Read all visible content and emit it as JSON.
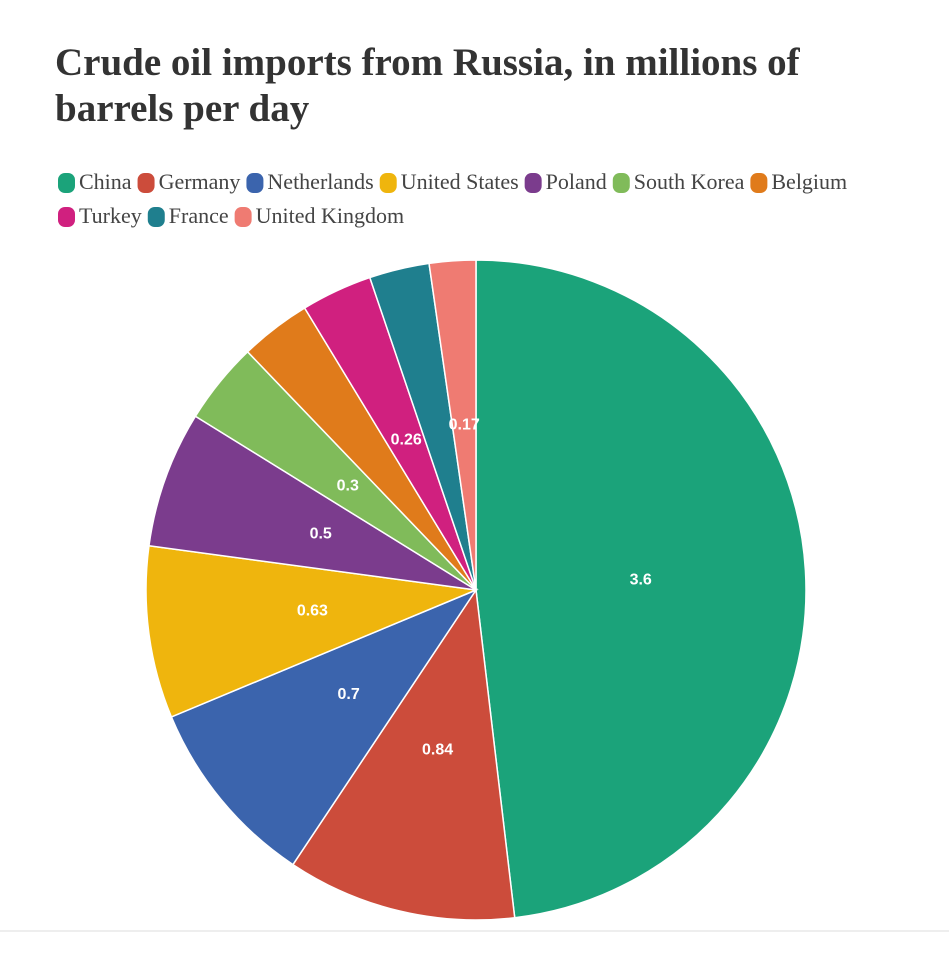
{
  "chart_data": {
    "type": "pie",
    "title": "Crude oil imports from Russia, in millions of barrels per day",
    "categories": [
      "China",
      "Germany",
      "Netherlands",
      "United States",
      "Poland",
      "South Korea",
      "Belgium",
      "Turkey",
      "France",
      "United Kingdom"
    ],
    "values": [
      3.6,
      0.84,
      0.7,
      0.63,
      0.5,
      0.3,
      0.26,
      0.26,
      0.22,
      0.17
    ],
    "value_labels": [
      "3.6",
      "0.84",
      "0.7",
      "0.63",
      "0.5",
      "0.3",
      null,
      "0.26",
      null,
      "0.17"
    ],
    "colors": [
      "#1ba37a",
      "#cc4c3b",
      "#3b64ad",
      "#efb50d",
      "#7b3c8d",
      "#80bb5a",
      "#e07b1b",
      "#d0207f",
      "#1f7f8e",
      "#ef7b72"
    ],
    "legend": "top"
  }
}
